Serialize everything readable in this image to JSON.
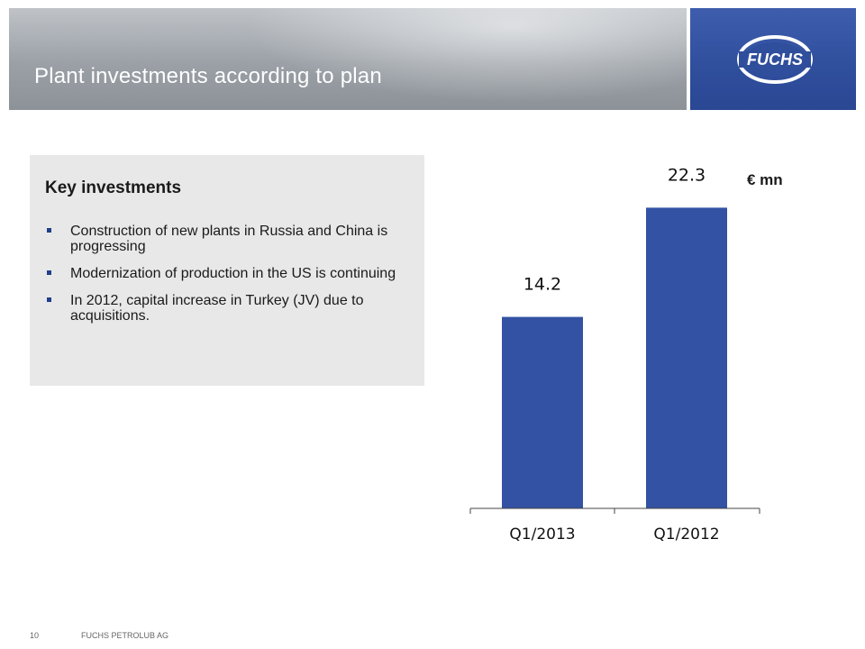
{
  "header": {
    "title": "Plant investments according to plan",
    "logo_text": "FUCHS"
  },
  "key_investments": {
    "title": "Key investments",
    "items": [
      "Construction of new plants in Russia and China is progressing",
      "Modernization of production in the US is continuing",
      "In 2012, capital increase in Turkey (JV) due to acquisitions."
    ]
  },
  "chart_data": {
    "type": "bar",
    "categories": [
      "Q1/2013",
      "Q1/2012"
    ],
    "values": [
      14.2,
      22.3
    ],
    "data_labels": [
      "14.2",
      "22.3"
    ],
    "unit": "€ mn",
    "title": "",
    "xlabel": "",
    "ylabel": "",
    "ylim": [
      0,
      25
    ],
    "bar_color": "#3352a3",
    "grid": false
  },
  "footer": {
    "page_number": "10",
    "company": "FUCHS PETROLUB AG"
  }
}
